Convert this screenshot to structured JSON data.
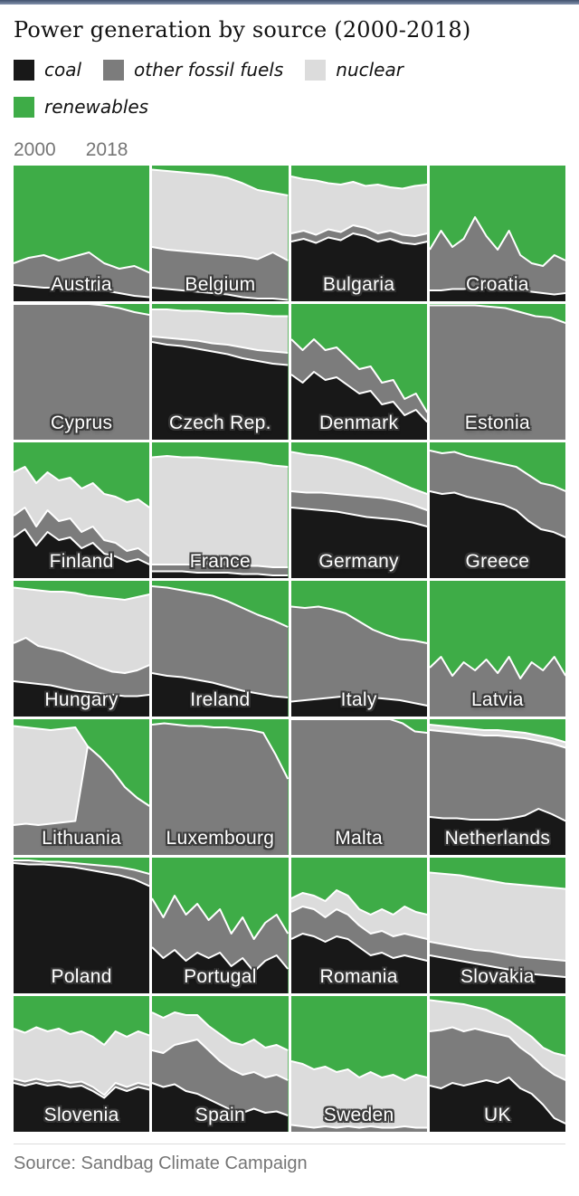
{
  "page": {
    "title": "Power generation by source (2000-2018)",
    "source": "Source: Sandbag Climate Campaign"
  },
  "axis": {
    "start_label": "2000",
    "end_label": "2018"
  },
  "legend": {
    "items": [
      {
        "label": "coal",
        "color": "#181818",
        "row": 1
      },
      {
        "label": "other fossil fuels",
        "color": "#7c7c7c",
        "row": 1
      },
      {
        "label": "nuclear",
        "color": "#dcdcdc",
        "row": 1
      },
      {
        "label": "renewables",
        "color": "#3eac47",
        "row": 2
      }
    ]
  },
  "chart_data": {
    "type": "area",
    "variant": "100% stacked area, small multiples (one per EU country)",
    "title": "Power generation by source (2000-2018)",
    "x_range": [
      2000,
      2018
    ],
    "ylim": [
      0,
      100
    ],
    "unit": "share of power generation, %",
    "grid": "4 columns x 7 rows",
    "legend_position": "top",
    "stack_order_bottom_to_top": [
      "coal",
      "other fossil fuels",
      "nuclear",
      "renewables"
    ],
    "colors": {
      "coal": "#181818",
      "other_fossil": "#7c7c7c",
      "nuclear": "#dcdcdc",
      "renewables": "#3eac47",
      "separator": "#ffffff"
    },
    "note": "Per country: cumulative % boundaries from bottom at evenly spaced years 2000-2018. coal = top of coal band; fossil = top of other-fossil band (incl. coal); nuclear = top of nuclear band (incl. below); renewables fill to 100.",
    "countries": [
      {
        "name": "Austria",
        "coal": [
          12,
          11,
          10,
          10,
          9,
          8,
          8,
          6,
          4,
          3
        ],
        "fossil": [
          28,
          32,
          34,
          30,
          33,
          36,
          28,
          24,
          26,
          21
        ],
        "nuclear": [
          28,
          32,
          34,
          30,
          33,
          36,
          28,
          24,
          26,
          21
        ]
      },
      {
        "name": "Belgium",
        "coal": [
          10,
          9,
          8,
          7,
          6,
          5,
          3,
          2,
          2,
          1
        ],
        "fossil": [
          40,
          38,
          37,
          36,
          35,
          34,
          33,
          31,
          36,
          30
        ],
        "nuclear": [
          97,
          96,
          95,
          94,
          93,
          91,
          87,
          82,
          80,
          78
        ]
      },
      {
        "name": "Bulgaria",
        "coal": [
          44,
          46,
          43,
          47,
          45,
          50,
          48,
          44,
          46,
          43,
          42,
          44
        ],
        "fossil": [
          50,
          52,
          49,
          53,
          51,
          56,
          54,
          50,
          52,
          49,
          48,
          50
        ],
        "nuclear": [
          92,
          90,
          89,
          87,
          86,
          88,
          85,
          86,
          84,
          83,
          85,
          86
        ]
      },
      {
        "name": "Croatia",
        "coal": [
          8,
          8,
          9,
          9,
          10,
          10,
          9,
          8,
          8,
          7,
          6,
          5,
          6
        ],
        "fossil": [
          38,
          52,
          40,
          46,
          62,
          48,
          38,
          52,
          34,
          28,
          26,
          34,
          30
        ],
        "nuclear": [
          38,
          52,
          40,
          46,
          62,
          48,
          38,
          52,
          34,
          28,
          26,
          34,
          30
        ]
      },
      {
        "name": "Cyprus",
        "coal": [
          0,
          0,
          0,
          0,
          0,
          0,
          0,
          0,
          0,
          0
        ],
        "fossil": [
          100,
          100,
          100,
          100,
          100,
          100,
          99,
          97,
          94,
          92
        ],
        "nuclear": [
          100,
          100,
          100,
          100,
          100,
          100,
          99,
          97,
          94,
          92
        ]
      },
      {
        "name": "Czech Rep.",
        "coal": [
          72,
          70,
          69,
          67,
          65,
          63,
          60,
          58,
          56,
          55
        ],
        "fossil": [
          76,
          75,
          74,
          73,
          71,
          70,
          68,
          66,
          65,
          64
        ],
        "nuclear": [
          96,
          96,
          95,
          95,
          94,
          93,
          93,
          92,
          91,
          91
        ]
      },
      {
        "name": "Denmark",
        "coal": [
          48,
          42,
          50,
          44,
          46,
          40,
          34,
          36,
          26,
          28,
          18,
          22,
          13
        ],
        "fossil": [
          74,
          66,
          74,
          66,
          68,
          60,
          52,
          54,
          42,
          44,
          30,
          34,
          20
        ],
        "nuclear": [
          74,
          66,
          74,
          66,
          68,
          60,
          52,
          54,
          42,
          44,
          30,
          34,
          20
        ]
      },
      {
        "name": "Estonia",
        "coal": [
          0,
          0,
          0,
          0,
          0,
          0,
          0,
          0,
          0,
          0
        ],
        "fossil": [
          99,
          99,
          99,
          99,
          98,
          97,
          94,
          91,
          90,
          86
        ],
        "nuclear": [
          99,
          99,
          99,
          99,
          98,
          97,
          94,
          91,
          90,
          86
        ]
      },
      {
        "name": "Finland",
        "coal": [
          30,
          36,
          24,
          34,
          28,
          30,
          22,
          26,
          18,
          16,
          12,
          14,
          10
        ],
        "fossil": [
          46,
          52,
          38,
          50,
          42,
          44,
          34,
          38,
          28,
          26,
          20,
          22,
          16
        ],
        "nuclear": [
          78,
          82,
          70,
          78,
          72,
          74,
          66,
          70,
          62,
          60,
          56,
          58,
          52
        ]
      },
      {
        "name": "France",
        "coal": [
          5,
          5,
          5,
          4,
          4,
          4,
          3,
          3,
          2,
          2
        ],
        "fossil": [
          10,
          10,
          10,
          10,
          11,
          10,
          9,
          9,
          8,
          8
        ],
        "nuclear": [
          89,
          90,
          89,
          89,
          88,
          87,
          86,
          85,
          83,
          82
        ]
      },
      {
        "name": "Germany",
        "coal": [
          52,
          51,
          50,
          49,
          47,
          45,
          44,
          43,
          41,
          38
        ],
        "fossil": [
          64,
          63,
          63,
          62,
          61,
          60,
          59,
          57,
          54,
          50
        ],
        "nuclear": [
          93,
          91,
          90,
          88,
          85,
          81,
          76,
          71,
          66,
          62
        ]
      },
      {
        "name": "Greece",
        "coal": [
          64,
          62,
          63,
          60,
          58,
          56,
          54,
          50,
          42,
          36,
          34,
          30
        ],
        "fossil": [
          94,
          92,
          93,
          90,
          88,
          86,
          84,
          82,
          76,
          70,
          68,
          64
        ],
        "nuclear": [
          94,
          92,
          93,
          90,
          88,
          86,
          84,
          82,
          76,
          70,
          68,
          64
        ]
      },
      {
        "name": "Hungary",
        "coal": [
          26,
          25,
          24,
          23,
          21,
          19,
          18,
          17,
          16,
          15,
          15,
          16
        ],
        "fossil": [
          54,
          58,
          52,
          50,
          48,
          44,
          40,
          36,
          33,
          32,
          34,
          38
        ],
        "nuclear": [
          95,
          94,
          93,
          92,
          92,
          91,
          89,
          88,
          87,
          86,
          88,
          90
        ]
      },
      {
        "name": "Ireland",
        "coal": [
          32,
          30,
          29,
          27,
          25,
          22,
          19,
          17,
          15,
          14
        ],
        "fossil": [
          96,
          95,
          93,
          91,
          89,
          85,
          80,
          75,
          71,
          66
        ],
        "nuclear": [
          96,
          95,
          93,
          91,
          89,
          85,
          80,
          75,
          71,
          66
        ]
      },
      {
        "name": "Italy",
        "coal": [
          11,
          12,
          13,
          14,
          15,
          16,
          14,
          13,
          12,
          10,
          8
        ],
        "fossil": [
          81,
          80,
          81,
          79,
          76,
          70,
          64,
          60,
          57,
          56,
          54
        ],
        "nuclear": [
          81,
          80,
          81,
          79,
          76,
          70,
          64,
          60,
          57,
          56,
          54
        ]
      },
      {
        "name": "Latvia",
        "coal": [
          0,
          0,
          0,
          0,
          0,
          0,
          0,
          0,
          0,
          0,
          0,
          0,
          0
        ],
        "fossil": [
          36,
          44,
          30,
          40,
          34,
          42,
          32,
          44,
          28,
          40,
          34,
          44,
          30
        ],
        "nuclear": [
          36,
          44,
          30,
          40,
          34,
          42,
          32,
          44,
          28,
          40,
          34,
          44,
          30
        ]
      },
      {
        "name": "Lithuania",
        "coal": [
          0,
          0,
          0,
          0,
          0,
          0,
          0,
          0,
          0,
          0,
          0,
          0
        ],
        "fossil": [
          22,
          23,
          22,
          23,
          24,
          25,
          80,
          72,
          62,
          50,
          42,
          36
        ],
        "nuclear": [
          95,
          94,
          93,
          92,
          93,
          94,
          80,
          72,
          62,
          50,
          42,
          36
        ]
      },
      {
        "name": "Luxembourg",
        "coal": [
          0,
          0,
          0,
          0,
          0,
          0,
          0,
          0,
          0,
          0,
          0,
          0
        ],
        "fossil": [
          96,
          97,
          96,
          95,
          95,
          94,
          94,
          93,
          92,
          90,
          74,
          56
        ],
        "nuclear": [
          96,
          97,
          96,
          95,
          95,
          94,
          94,
          93,
          92,
          90,
          74,
          56
        ]
      },
      {
        "name": "Malta",
        "coal": [
          0,
          0,
          0,
          0,
          0,
          0,
          0,
          0,
          0,
          0,
          0,
          0
        ],
        "fossil": [
          100,
          100,
          100,
          100,
          100,
          100,
          100,
          100,
          100,
          97,
          91,
          90
        ],
        "nuclear": [
          100,
          100,
          100,
          100,
          100,
          100,
          100,
          100,
          100,
          97,
          91,
          90
        ]
      },
      {
        "name": "Netherlands",
        "coal": [
          28,
          27,
          27,
          26,
          26,
          26,
          27,
          29,
          34,
          30,
          25
        ],
        "fossil": [
          92,
          91,
          90,
          89,
          88,
          88,
          87,
          86,
          84,
          82,
          79
        ],
        "nuclear": [
          96,
          95,
          94,
          93,
          92,
          92,
          91,
          90,
          88,
          86,
          83
        ]
      },
      {
        "name": "Poland",
        "coal": [
          96,
          95,
          95,
          94,
          93,
          91,
          89,
          87,
          84,
          79
        ],
        "fossil": [
          98,
          98,
          97,
          97,
          96,
          95,
          94,
          93,
          91,
          88
        ],
        "nuclear": [
          98,
          98,
          97,
          97,
          96,
          95,
          94,
          93,
          91,
          88
        ]
      },
      {
        "name": "Portugal",
        "coal": [
          34,
          26,
          32,
          24,
          30,
          26,
          30,
          20,
          26,
          16,
          24,
          28,
          18
        ],
        "fossil": [
          70,
          56,
          72,
          58,
          66,
          54,
          62,
          44,
          56,
          40,
          52,
          58,
          44
        ],
        "nuclear": [
          70,
          56,
          72,
          58,
          66,
          54,
          62,
          44,
          56,
          40,
          52,
          58,
          44
        ]
      },
      {
        "name": "Romania",
        "coal": [
          40,
          44,
          42,
          38,
          42,
          40,
          34,
          28,
          30,
          26,
          28,
          26,
          24
        ],
        "fossil": [
          60,
          64,
          62,
          56,
          62,
          58,
          50,
          44,
          46,
          42,
          44,
          42,
          40
        ],
        "nuclear": [
          70,
          74,
          72,
          68,
          76,
          72,
          62,
          58,
          62,
          58,
          64,
          60,
          58
        ]
      },
      {
        "name": "Slovakia",
        "coal": [
          28,
          26,
          24,
          22,
          20,
          18,
          16,
          14,
          13,
          12
        ],
        "fossil": [
          38,
          36,
          34,
          32,
          31,
          29,
          27,
          26,
          25,
          24
        ],
        "nuclear": [
          89,
          88,
          87,
          85,
          83,
          81,
          80,
          79,
          78,
          77
        ]
      },
      {
        "name": "Slovenia",
        "coal": [
          36,
          34,
          36,
          34,
          35,
          33,
          34,
          30,
          25,
          33,
          30,
          33,
          31
        ],
        "fossil": [
          39,
          37,
          39,
          37,
          38,
          36,
          37,
          33,
          27,
          36,
          33,
          36,
          34
        ],
        "nuclear": [
          76,
          73,
          77,
          74,
          76,
          72,
          74,
          70,
          64,
          74,
          70,
          74,
          71
        ]
      },
      {
        "name": "Spain",
        "coal": [
          36,
          33,
          35,
          30,
          28,
          24,
          20,
          16,
          14,
          17,
          14,
          15,
          12
        ],
        "fossil": [
          60,
          58,
          64,
          66,
          68,
          60,
          52,
          46,
          42,
          44,
          40,
          42,
          38
        ],
        "nuclear": [
          88,
          84,
          88,
          86,
          86,
          78,
          72,
          66,
          64,
          68,
          62,
          64,
          60
        ]
      },
      {
        "name": "Sweden",
        "coal": [
          0,
          0,
          0,
          0,
          0,
          0,
          0,
          0,
          0,
          0,
          0,
          0,
          0
        ],
        "fossil": [
          5,
          4,
          3,
          4,
          3,
          4,
          3,
          4,
          3,
          3,
          4,
          3,
          3
        ],
        "nuclear": [
          52,
          50,
          46,
          48,
          44,
          46,
          40,
          44,
          40,
          42,
          38,
          42,
          40
        ]
      },
      {
        "name": "UK",
        "coal": [
          34,
          32,
          36,
          34,
          36,
          38,
          36,
          40,
          32,
          28,
          20,
          10,
          6
        ],
        "fossil": [
          74,
          75,
          77,
          74,
          76,
          74,
          72,
          70,
          62,
          56,
          48,
          42,
          38
        ],
        "nuclear": [
          97,
          96,
          95,
          94,
          92,
          90,
          86,
          82,
          76,
          70,
          62,
          58,
          56
        ]
      }
    ]
  }
}
